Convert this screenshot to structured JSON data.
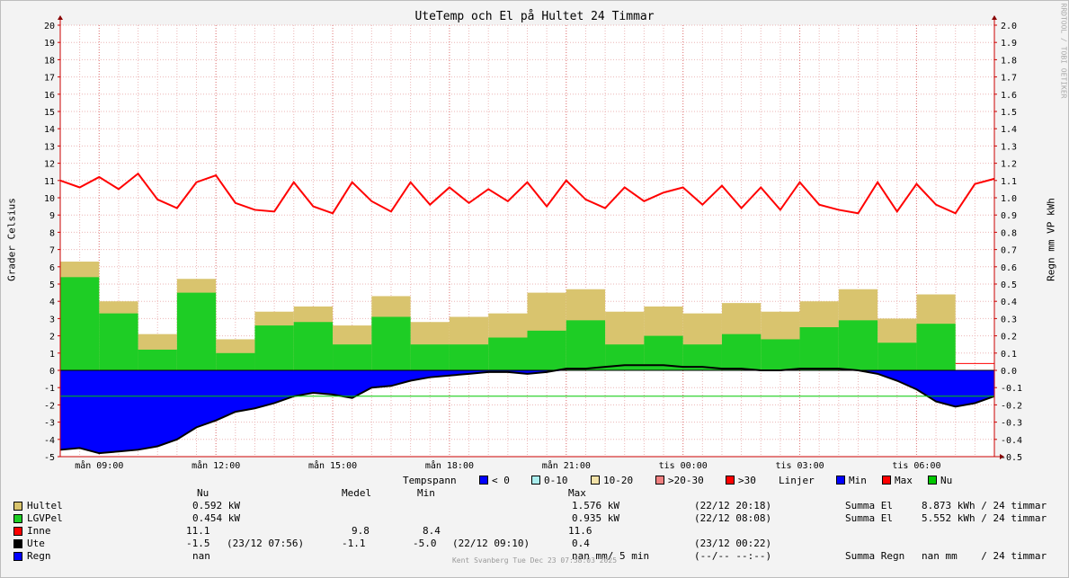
{
  "chart_data": {
    "type": "area",
    "title": "UteTemp och El på Hultet 24 Timmar",
    "ylabel": "Grader Celsius",
    "ylabel_right": "Regn mm VP kWh",
    "ylim": [
      -5,
      20
    ],
    "ylim_right": [
      -0.5,
      2.0
    ],
    "yticks": [
      "20",
      "19",
      "18",
      "17",
      "16",
      "15",
      "14",
      "13",
      "12",
      "11",
      "10",
      "9",
      "8",
      "7",
      "6",
      "5",
      "4",
      "3",
      "2",
      "1",
      "0",
      "-1",
      "-2",
      "-3",
      "-4",
      "-5"
    ],
    "yticks_right": [
      "2.0",
      "1.9",
      "1.8",
      "1.7",
      "1.6",
      "1.5",
      "1.4",
      "1.3",
      "1.2",
      "1.1",
      "1.0",
      "0.9",
      "0.8",
      "0.7",
      "0.6",
      "0.5",
      "0.4",
      "0.3",
      "0.2",
      "0.1",
      "0.0",
      "-0.1",
      "-0.2",
      "-0.3",
      "-0.4",
      "-0.5"
    ],
    "xticks": [
      {
        "label": "mån 09:00",
        "hour": 9
      },
      {
        "label": "mån 12:00",
        "hour": 12
      },
      {
        "label": "mån 15:00",
        "hour": 15
      },
      {
        "label": "mån 18:00",
        "hour": 18
      },
      {
        "label": "mån 21:00",
        "hour": 21
      },
      {
        "label": "tis 00:00",
        "hour": 24
      },
      {
        "label": "tis 03:00",
        "hour": 27
      },
      {
        "label": "tis 06:00",
        "hour": 30
      }
    ],
    "x_range_hours": [
      8.0,
      32.0
    ],
    "hourly_hours": [
      8,
      9,
      10,
      11,
      12,
      13,
      14,
      15,
      16,
      17,
      18,
      19,
      20,
      21,
      22,
      23,
      24,
      25,
      26,
      27,
      28,
      29,
      30
    ],
    "series": [
      {
        "name": "Hultel",
        "unit": "kW",
        "color": "#d9c46e",
        "values": [
          0.63,
          0.4,
          0.21,
          0.53,
          0.18,
          0.34,
          0.37,
          0.26,
          0.43,
          0.28,
          0.31,
          0.33,
          0.45,
          0.47,
          0.34,
          0.37,
          0.33,
          0.39,
          0.34,
          0.4,
          0.47,
          0.3,
          0.44
        ]
      },
      {
        "name": "LGVPel",
        "unit": "kW",
        "color": "#1ecd25",
        "values": [
          0.54,
          0.33,
          0.12,
          0.45,
          0.1,
          0.26,
          0.28,
          0.15,
          0.31,
          0.15,
          0.15,
          0.19,
          0.23,
          0.29,
          0.15,
          0.2,
          0.15,
          0.21,
          0.18,
          0.25,
          0.29,
          0.16,
          0.27
        ]
      },
      {
        "name": "Ute",
        "unit": "°C",
        "color": "#0000ff",
        "x": [
          8,
          8.5,
          9,
          9.5,
          10,
          10.5,
          11,
          11.5,
          12,
          12.5,
          13,
          13.5,
          14,
          14.5,
          15,
          15.5,
          16,
          16.5,
          17,
          17.5,
          18,
          18.5,
          19,
          19.5,
          20,
          20.5,
          21,
          21.5,
          22,
          22.5,
          23,
          23.5,
          24,
          24.5,
          25,
          25.5,
          26,
          26.5,
          27,
          27.5,
          28,
          28.5,
          29,
          29.5,
          30,
          30.5,
          31,
          31.5,
          32
        ],
        "values": [
          -4.6,
          -4.5,
          -4.8,
          -4.7,
          -4.6,
          -4.4,
          -4.0,
          -3.3,
          -2.9,
          -2.4,
          -2.2,
          -1.9,
          -1.5,
          -1.3,
          -1.4,
          -1.6,
          -1.0,
          -0.9,
          -0.6,
          -0.4,
          -0.3,
          -0.2,
          -0.1,
          -0.1,
          -0.2,
          -0.1,
          0.1,
          0.1,
          0.2,
          0.3,
          0.3,
          0.3,
          0.2,
          0.2,
          0.1,
          0.1,
          0.0,
          0.0,
          0.1,
          0.1,
          0.1,
          0.0,
          -0.2,
          -0.6,
          -1.1,
          -1.8,
          -2.1,
          -1.9,
          -1.5
        ]
      },
      {
        "name": "Inne",
        "unit": "°C",
        "color": "#ff0000",
        "x": [
          8,
          8.5,
          9,
          9.5,
          10,
          10.5,
          11,
          11.5,
          12,
          12.5,
          13,
          13.5,
          14,
          14.5,
          15,
          15.5,
          16,
          16.5,
          17,
          17.5,
          18,
          18.5,
          19,
          19.5,
          20,
          20.5,
          21,
          21.5,
          22,
          22.5,
          23,
          23.5,
          24,
          24.5,
          25,
          25.5,
          26,
          26.5,
          27,
          27.5,
          28,
          28.5,
          29,
          29.5,
          30,
          30.5,
          31,
          31.5,
          32
        ],
        "values": [
          11.0,
          10.6,
          11.2,
          10.5,
          11.4,
          9.9,
          9.4,
          10.9,
          11.3,
          9.7,
          9.3,
          9.2,
          10.9,
          9.5,
          9.1,
          10.9,
          9.8,
          9.2,
          10.9,
          9.6,
          10.6,
          9.7,
          10.5,
          9.8,
          10.9,
          9.5,
          11.0,
          9.9,
          9.4,
          10.6,
          9.8,
          10.3,
          10.6,
          9.6,
          10.7,
          9.4,
          10.6,
          9.3,
          10.9,
          9.6,
          9.3,
          9.1,
          10.9,
          9.2,
          10.8,
          9.6,
          9.1,
          10.8,
          11.1
        ]
      },
      {
        "name": "Regn",
        "unit": "mm",
        "color": "#0000ff",
        "values": []
      }
    ],
    "lines": [
      {
        "name": "Min",
        "color": "#0000ff"
      },
      {
        "name": "Max",
        "color": "#ff0000"
      },
      {
        "name": "Nu",
        "color": "#00c800"
      }
    ],
    "grid": true,
    "legend_position": "bottom"
  },
  "tempspann": {
    "label": "Tempspann",
    "items": [
      {
        "label": "< 0",
        "color": "#0000ff"
      },
      {
        "label": "0-10",
        "color": "#aaeeee"
      },
      {
        "label": "10-20",
        "color": "#f2e2a8"
      },
      {
        "label": ">20-30",
        "color": "#f08080"
      },
      {
        "label": ">30",
        "color": "#ff0000"
      }
    ]
  },
  "linjer": {
    "label": "Linjer",
    "items": [
      {
        "label": "Min",
        "color": "#0000ff"
      },
      {
        "label": "Max",
        "color": "#ff0000"
      },
      {
        "label": "Nu",
        "color": "#00c800"
      }
    ]
  },
  "stats": {
    "headers": {
      "nu": "Nu",
      "medel": "Medel",
      "min": "Min",
      "max": "Max"
    },
    "rows": [
      {
        "name": "Hultel",
        "color": "#d9c46e",
        "nu": "0.592 kW",
        "medel": "",
        "min": "",
        "max": "1.576 kW",
        "maxtime": "(22/12 20:18)",
        "summa_label": "Summa El",
        "summa": "8.873 kWh / 24 timmar"
      },
      {
        "name": "LGVPel",
        "color": "#1ecd25",
        "nu": "0.454 kW",
        "medel": "",
        "min": "",
        "max": "0.935 kW",
        "maxtime": "(22/12 08:08)",
        "summa_label": "Summa El",
        "summa": "5.552 kWh / 24 timmar"
      },
      {
        "name": "Inne",
        "color": "#ff0000",
        "nu": "11.1",
        "medel": "9.8",
        "min": "8.4",
        "max": "11.6",
        "maxtime": "",
        "summa_label": "",
        "summa": ""
      },
      {
        "name": "Ute",
        "color": "#000000",
        "nu": "-1.5",
        "nutime": "(23/12 07:56)",
        "medel": "-1.1",
        "min": "-5.0",
        "mintime": "(22/12 09:10)",
        "max": "0.4",
        "maxtime": "(23/12 00:22)",
        "summa_label": "",
        "summa": ""
      },
      {
        "name": "Regn",
        "color": "#0000ff",
        "nu": "nan",
        "medel": "",
        "min": "",
        "max": "nan mm/ 5 min",
        "maxtime": "(--/-- --:--)",
        "summa_label": "Summa Regn",
        "summa": "nan mm    / 24 timmar"
      }
    ]
  },
  "watermark": "RRDTOOL / TOBI OETIKER",
  "footer": "Kent Svanberg Tue Dec 23 07:58:03 2025"
}
